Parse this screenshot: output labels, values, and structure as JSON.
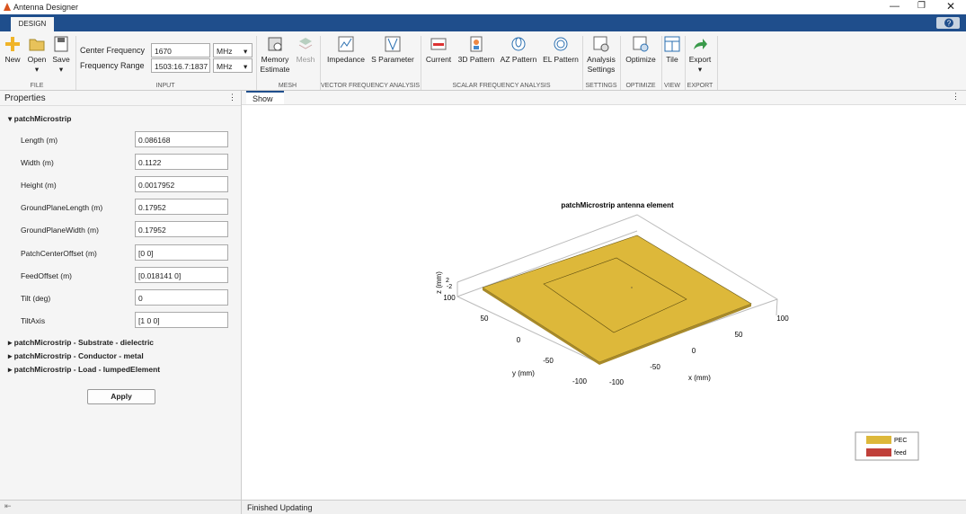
{
  "window": {
    "title": "Antenna Designer"
  },
  "tabs": [
    "DESIGN"
  ],
  "toolstrip": {
    "file": {
      "label": "FILE",
      "buttons": [
        "New",
        "Open",
        "Save"
      ]
    },
    "input": {
      "label": "INPUT",
      "center_frequency_label": "Center Frequency",
      "center_frequency": "1670",
      "center_frequency_unit": "MHz",
      "frequency_range_label": "Frequency Range",
      "frequency_range": "1503:16.7:1837",
      "frequency_range_unit": "MHz"
    },
    "mesh": {
      "label": "MESH",
      "buttons": [
        "Memory Estimate",
        "Mesh"
      ]
    },
    "vector": {
      "label": "VECTOR FREQUENCY ANALYSIS",
      "buttons": [
        "Impedance",
        "S Parameter"
      ]
    },
    "scalar": {
      "label": "SCALAR FREQUENCY ANALYSIS",
      "buttons": [
        "Current",
        "3D Pattern",
        "AZ Pattern",
        "EL Pattern"
      ]
    },
    "settings": {
      "label": "SETTINGS",
      "buttons": [
        "Analysis Settings"
      ]
    },
    "optimize": {
      "label": "OPTIMIZE",
      "buttons": [
        "Optimize"
      ]
    },
    "view": {
      "label": "VIEW",
      "buttons": [
        "Tile"
      ]
    },
    "export": {
      "label": "EXPORT",
      "buttons": [
        "Export"
      ]
    }
  },
  "properties": {
    "title": "Properties",
    "section": "patchMicrostrip",
    "fields": [
      {
        "label": "Length (m)",
        "value": "0.086168"
      },
      {
        "label": "Width (m)",
        "value": "0.1122"
      },
      {
        "label": "Height (m)",
        "value": "0.0017952"
      },
      {
        "label": "GroundPlaneLength (m)",
        "value": "0.17952"
      },
      {
        "label": "GroundPlaneWidth (m)",
        "value": "0.17952"
      },
      {
        "label": "PatchCenterOffset (m)",
        "value": "[0 0]"
      },
      {
        "label": "FeedOffset (m)",
        "value": "[0.018141 0]"
      },
      {
        "label": "Tilt (deg)",
        "value": "0"
      },
      {
        "label": "TiltAxis",
        "value": "[1 0 0]"
      }
    ],
    "collapsed": [
      "patchMicrostrip - Substrate - dielectric",
      "patchMicrostrip - Conductor - metal",
      "patchMicrostrip - Load - lumpedElement"
    ],
    "apply": "Apply"
  },
  "document": {
    "tab": "Show",
    "plot": {
      "title": "patchMicrostrip antenna element",
      "x_label": "x (mm)",
      "y_label": "y (mm)",
      "z_label": "z (mm)",
      "x_ticks": [
        "-100",
        "-50",
        "0",
        "50",
        "100"
      ],
      "y_ticks": [
        "100",
        "50",
        "0",
        "-50",
        "-100"
      ],
      "z_ticks": [
        "2",
        "-2"
      ],
      "legend": [
        "PEC",
        "feed"
      ]
    }
  },
  "status": "Finished Updating"
}
